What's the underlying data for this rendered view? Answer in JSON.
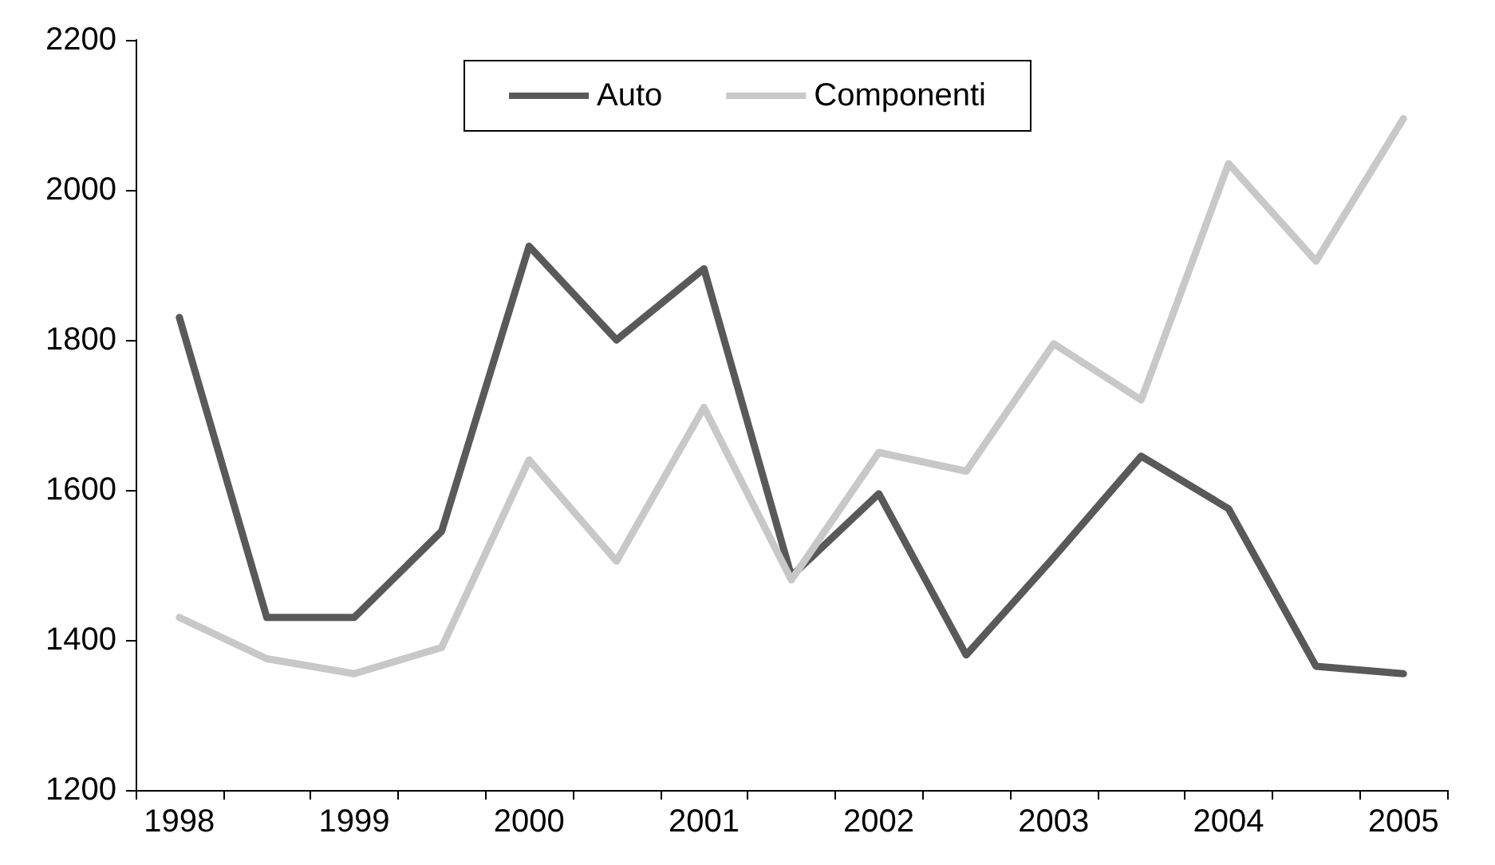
{
  "chart_data": {
    "type": "line",
    "categories": [
      "1998",
      null,
      "1999",
      null,
      "2000",
      null,
      "2001",
      null,
      "2002",
      null,
      "2003",
      null,
      "2004",
      null,
      "2005"
    ],
    "series": [
      {
        "name": "Auto",
        "color": "#595959",
        "values": [
          1830,
          1430,
          1430,
          1545,
          1925,
          1800,
          1895,
          1485,
          1595,
          1380,
          1510,
          1645,
          1575,
          1365,
          1355
        ]
      },
      {
        "name": "Componenti",
        "color": "#c8c8c8",
        "values": [
          1430,
          1375,
          1355,
          1390,
          1640,
          1505,
          1710,
          1480,
          1650,
          1625,
          1795,
          1720,
          2035,
          1905,
          2095
        ]
      }
    ],
    "ylim": [
      1200,
      2200
    ],
    "yticks": [
      1200,
      1400,
      1600,
      1800,
      2000,
      2200
    ],
    "grid": false,
    "legend": "top",
    "marker": "none",
    "line_style": "solid"
  }
}
